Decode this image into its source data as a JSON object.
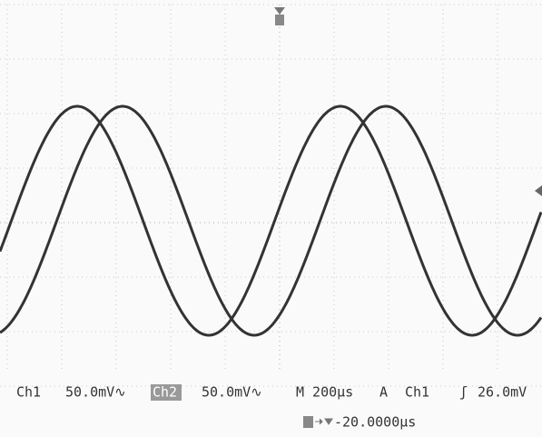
{
  "status": {
    "ch1_label": "Ch1",
    "ch1_scale": "50.0mV∿",
    "ch2_label": "Ch2",
    "ch2_scale": "50.0mV∿",
    "timebase": "M 200µs",
    "trigger_mode": "A",
    "trigger_source": "Ch1",
    "trigger_slope": "ʃ",
    "trigger_level": "26.0mV",
    "trigger_position": "-20.0000µs"
  }
}
